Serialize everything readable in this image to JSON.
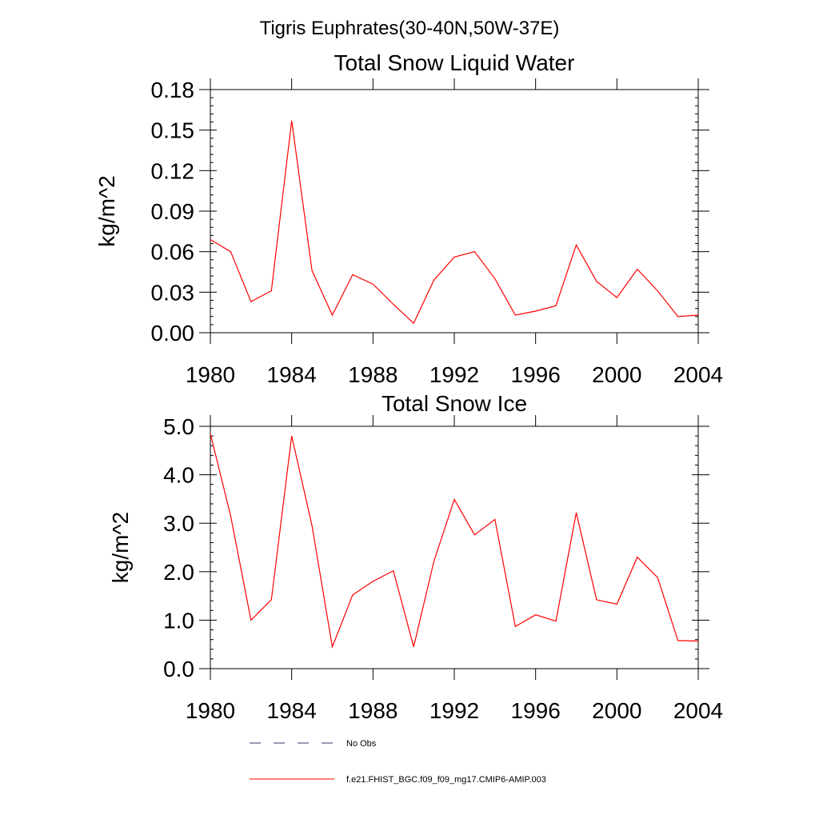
{
  "figure": {
    "title": "Tigris Euphrates(30-40N,50W-37E)"
  },
  "legend": [
    {
      "label": "No Obs",
      "style": "dashed",
      "color": "#3a3a6e"
    },
    {
      "label": "f.e21.FHIST_BGC.f09_f09_mg17.CMIP6-AMIP.003",
      "style": "solid",
      "color": "#ff0000"
    }
  ],
  "chart_data": [
    {
      "type": "line",
      "title": "Total Snow Liquid Water",
      "xlabel": "",
      "ylabel": "kg/m^2",
      "xlim": [
        1980,
        2004
      ],
      "ylim": [
        0,
        0.18
      ],
      "x_ticks": [
        1980,
        1984,
        1988,
        1992,
        1996,
        2000,
        2004
      ],
      "y_ticks": [
        0.0,
        0.03,
        0.06,
        0.09,
        0.12,
        0.15,
        0.18
      ],
      "y_tick_labels": [
        "0.00",
        "0.03",
        "0.06",
        "0.09",
        "0.12",
        "0.15",
        "0.18"
      ],
      "series": [
        {
          "color": "#ff0000",
          "x": [
            1980,
            1981,
            1982,
            1983,
            1984,
            1985,
            1986,
            1987,
            1988,
            1989,
            1990,
            1991,
            1992,
            1993,
            1994,
            1995,
            1996,
            1997,
            1998,
            1999,
            2000,
            2001,
            2002,
            2003,
            2004
          ],
          "values": [
            0.069,
            0.06,
            0.023,
            0.031,
            0.157,
            0.046,
            0.013,
            0.043,
            0.036,
            0.021,
            0.007,
            0.039,
            0.056,
            0.06,
            0.04,
            0.013,
            0.016,
            0.02,
            0.065,
            0.038,
            0.026,
            0.047,
            0.031,
            0.012,
            0.013
          ]
        }
      ]
    },
    {
      "type": "line",
      "title": "Total Snow Ice",
      "xlabel": "",
      "ylabel": "kg/m^2",
      "xlim": [
        1980,
        2004
      ],
      "ylim": [
        0,
        5
      ],
      "x_ticks": [
        1980,
        1984,
        1988,
        1992,
        1996,
        2000,
        2004
      ],
      "y_ticks": [
        0,
        1,
        2,
        3,
        4,
        5
      ],
      "y_tick_labels": [
        "0.0",
        "1.0",
        "2.0",
        "3.0",
        "4.0",
        "5.0"
      ],
      "series": [
        {
          "color": "#ff0000",
          "x": [
            1980,
            1981,
            1982,
            1983,
            1984,
            1985,
            1986,
            1987,
            1988,
            1989,
            1990,
            1991,
            1992,
            1993,
            1994,
            1995,
            1996,
            1997,
            1998,
            1999,
            2000,
            2001,
            2002,
            2003,
            2004
          ],
          "values": [
            4.85,
            3.15,
            1.0,
            1.42,
            4.8,
            2.95,
            0.45,
            1.52,
            1.8,
            2.02,
            0.45,
            2.22,
            3.49,
            2.76,
            3.08,
            0.87,
            1.11,
            0.98,
            3.22,
            1.42,
            1.33,
            2.3,
            1.88,
            0.58,
            0.57
          ]
        }
      ]
    }
  ]
}
